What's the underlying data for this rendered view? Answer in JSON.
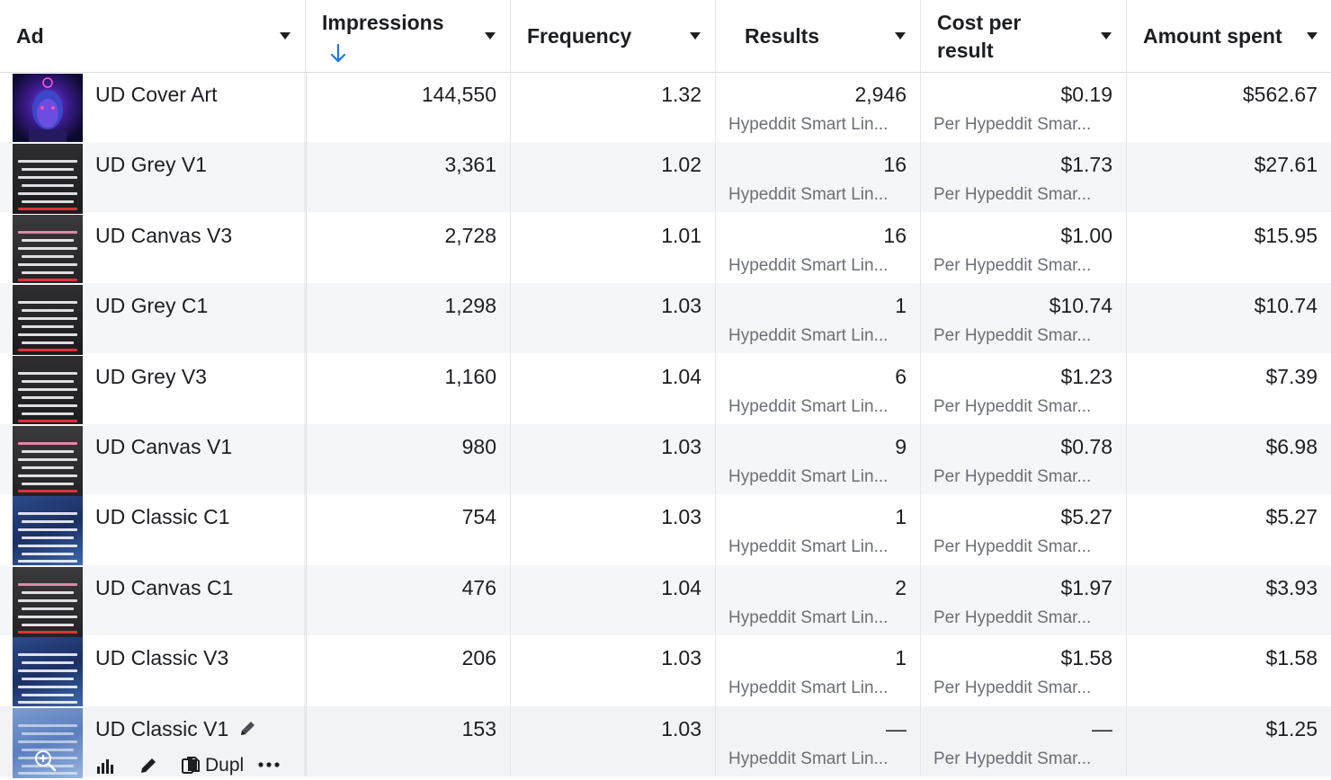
{
  "columns": {
    "ad": "Ad",
    "impressions": "Impressions",
    "frequency": "Frequency",
    "results": "Results",
    "cost_per_result_line1": "Cost per",
    "cost_per_result_line2": "result",
    "amount_spent": "Amount spent"
  },
  "sort": {
    "column": "impressions",
    "direction": "descending",
    "icon": "arrow-down-icon"
  },
  "colors": {
    "sort_arrow": "#1877f2",
    "row_alt": "#f5f6f7",
    "subtext": "#6b6f76"
  },
  "rows": [
    {
      "name": "UD Cover Art",
      "impressions": "144,550",
      "frequency": "1.32",
      "results": "2,946",
      "results_sub": "Hypeddit Smart Lin...",
      "cost": "$0.19",
      "cost_sub": "Per Hypeddit Smar...",
      "spent": "$562.67",
      "thumb": "cover"
    },
    {
      "name": "UD Grey V1",
      "impressions": "3,361",
      "frequency": "1.02",
      "results": "16",
      "results_sub": "Hypeddit Smart Lin...",
      "cost": "$1.73",
      "cost_sub": "Per Hypeddit Smar...",
      "spent": "$27.61",
      "thumb": "grey"
    },
    {
      "name": "UD Canvas V3",
      "impressions": "2,728",
      "frequency": "1.01",
      "results": "16",
      "results_sub": "Hypeddit Smart Lin...",
      "cost": "$1.00",
      "cost_sub": "Per Hypeddit Smar...",
      "spent": "$15.95",
      "thumb": "canvas"
    },
    {
      "name": "UD Grey C1",
      "impressions": "1,298",
      "frequency": "1.03",
      "results": "1",
      "results_sub": "Hypeddit Smart Lin...",
      "cost": "$10.74",
      "cost_sub": "Per Hypeddit Smar...",
      "spent": "$10.74",
      "thumb": "grey"
    },
    {
      "name": "UD Grey V3",
      "impressions": "1,160",
      "frequency": "1.04",
      "results": "6",
      "results_sub": "Hypeddit Smart Lin...",
      "cost": "$1.23",
      "cost_sub": "Per Hypeddit Smar...",
      "spent": "$7.39",
      "thumb": "grey"
    },
    {
      "name": "UD Canvas V1",
      "impressions": "980",
      "frequency": "1.03",
      "results": "9",
      "results_sub": "Hypeddit Smart Lin...",
      "cost": "$0.78",
      "cost_sub": "Per Hypeddit Smar...",
      "spent": "$6.98",
      "thumb": "canvas"
    },
    {
      "name": "UD Classic C1",
      "impressions": "754",
      "frequency": "1.03",
      "results": "1",
      "results_sub": "Hypeddit Smart Lin...",
      "cost": "$5.27",
      "cost_sub": "Per Hypeddit Smar...",
      "spent": "$5.27",
      "thumb": "classic"
    },
    {
      "name": "UD Canvas C1",
      "impressions": "476",
      "frequency": "1.04",
      "results": "2",
      "results_sub": "Hypeddit Smart Lin...",
      "cost": "$1.97",
      "cost_sub": "Per Hypeddit Smar...",
      "spent": "$3.93",
      "thumb": "canvas"
    },
    {
      "name": "UD Classic V3",
      "impressions": "206",
      "frequency": "1.03",
      "results": "1",
      "results_sub": "Hypeddit Smart Lin...",
      "cost": "$1.58",
      "cost_sub": "Per Hypeddit Smar...",
      "spent": "$1.58",
      "thumb": "classic"
    },
    {
      "name": "UD Classic V1",
      "impressions": "153",
      "frequency": "1.03",
      "results": "—",
      "results_sub": "Hypeddit Smart Lin...",
      "cost": "—",
      "cost_sub": "Per Hypeddit Smar...",
      "spent": "$1.25",
      "thumb": "classic-light"
    }
  ],
  "hover_actions": {
    "charts_icon": "bar-chart-icon",
    "edit_icon": "pencil-icon",
    "duplicate_icon": "duplicate-icon",
    "duplicate_label": "Dupl",
    "more_icon": "more-icon",
    "zoom_icon": "zoom-in-icon",
    "rename_icon": "pencil-icon"
  }
}
